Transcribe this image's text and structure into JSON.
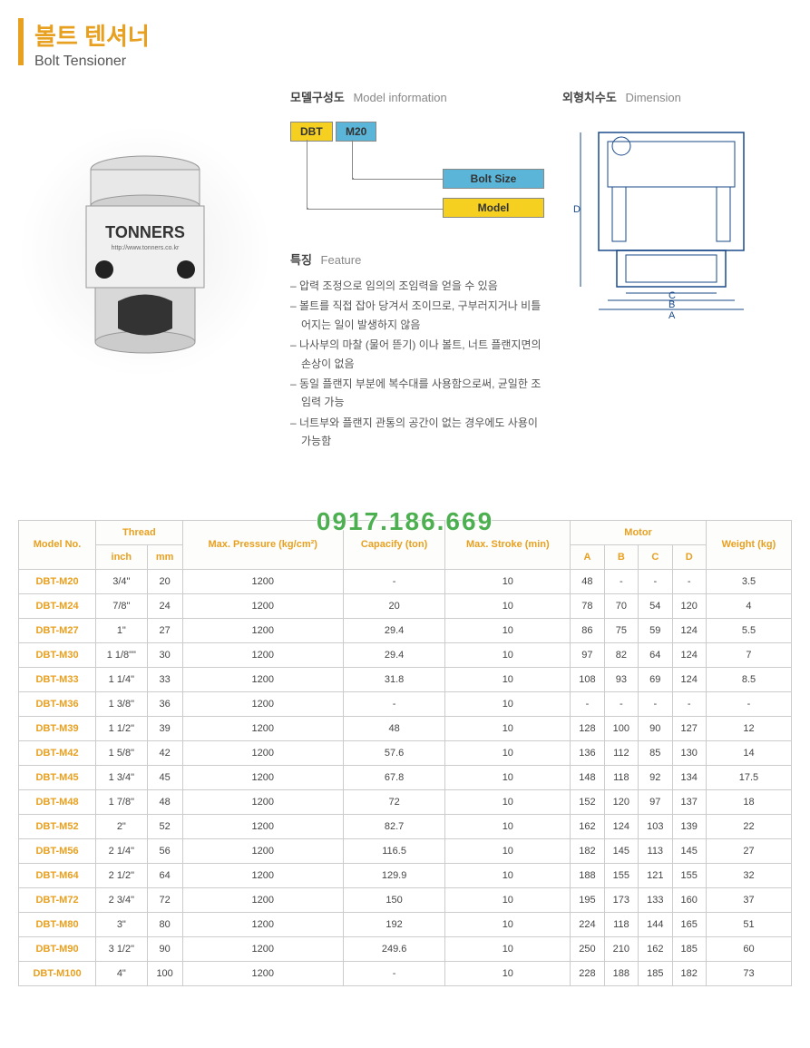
{
  "header": {
    "title_kr": "볼트 텐셔너",
    "title_en": "Bolt Tensioner",
    "accent_color": "#e8a020"
  },
  "product": {
    "brand": "TONNERS",
    "url": "http://www.tonners.co.kr"
  },
  "model_info": {
    "section_kr": "모델구성도",
    "section_en": "Model information",
    "tag_model": "DBT",
    "tag_size": "M20",
    "label_boltsize": "Bolt Size",
    "label_model": "Model",
    "color_yellow": "#f5d020",
    "color_blue": "#5bb5d8"
  },
  "feature": {
    "section_kr": "특징",
    "section_en": "Feature",
    "items": [
      "압력 조정으로 임의의 조임력을 얻을 수 있음",
      "볼트를 직접 잡아 당겨서 조이므로, 구부러지거나 비틀어지는 일이 발생하지 않음",
      "나사부의 마찰 (물어 뜯기) 이나 볼트, 너트 플랜지면의 손상이 없음",
      "동일 플랜지 부분에 복수대를 사용함으로써, 균일한 조임력 가능",
      "너트부와 플랜지 관통의 공간이 없는 경우에도 사용이 가능함"
    ]
  },
  "dimension": {
    "section_kr": "외형치수도",
    "section_en": "Dimension",
    "labels": [
      "A",
      "B",
      "C",
      "D"
    ]
  },
  "watermark": "0917.186.669",
  "table": {
    "headers": {
      "model": "Model No.",
      "thread": "Thread",
      "thread_inch": "inch",
      "thread_mm": "mm",
      "pressure": "Max. Pressure (kg/cm²)",
      "capacity": "Capacify (ton)",
      "stroke": "Max. Stroke (min)",
      "motor": "Motor",
      "motor_a": "A",
      "motor_b": "B",
      "motor_c": "C",
      "motor_d": "D",
      "weight": "Weight (kg)"
    },
    "rows": [
      {
        "model": "DBT-M20",
        "inch": "3/4\"",
        "mm": "20",
        "pressure": "1200",
        "cap": "-",
        "stroke": "10",
        "a": "48",
        "b": "-",
        "c": "-",
        "d": "-",
        "weight": "3.5"
      },
      {
        "model": "DBT-M24",
        "inch": "7/8\"",
        "mm": "24",
        "pressure": "1200",
        "cap": "20",
        "stroke": "10",
        "a": "78",
        "b": "70",
        "c": "54",
        "d": "120",
        "weight": "4"
      },
      {
        "model": "DBT-M27",
        "inch": "1\"",
        "mm": "27",
        "pressure": "1200",
        "cap": "29.4",
        "stroke": "10",
        "a": "86",
        "b": "75",
        "c": "59",
        "d": "124",
        "weight": "5.5"
      },
      {
        "model": "DBT-M30",
        "inch": "1 1/8\"\"",
        "mm": "30",
        "pressure": "1200",
        "cap": "29.4",
        "stroke": "10",
        "a": "97",
        "b": "82",
        "c": "64",
        "d": "124",
        "weight": "7"
      },
      {
        "model": "DBT-M33",
        "inch": "1 1/4\"",
        "mm": "33",
        "pressure": "1200",
        "cap": "31.8",
        "stroke": "10",
        "a": "108",
        "b": "93",
        "c": "69",
        "d": "124",
        "weight": "8.5"
      },
      {
        "model": "DBT-M36",
        "inch": "1 3/8\"",
        "mm": "36",
        "pressure": "1200",
        "cap": "-",
        "stroke": "10",
        "a": "-",
        "b": "-",
        "c": "-",
        "d": "-",
        "weight": "-"
      },
      {
        "model": "DBT-M39",
        "inch": "1 1/2\"",
        "mm": "39",
        "pressure": "1200",
        "cap": "48",
        "stroke": "10",
        "a": "128",
        "b": "100",
        "c": "90",
        "d": "127",
        "weight": "12"
      },
      {
        "model": "DBT-M42",
        "inch": "1 5/8\"",
        "mm": "42",
        "pressure": "1200",
        "cap": "57.6",
        "stroke": "10",
        "a": "136",
        "b": "112",
        "c": "85",
        "d": "130",
        "weight": "14"
      },
      {
        "model": "DBT-M45",
        "inch": "1 3/4\"",
        "mm": "45",
        "pressure": "1200",
        "cap": "67.8",
        "stroke": "10",
        "a": "148",
        "b": "118",
        "c": "92",
        "d": "134",
        "weight": "17.5"
      },
      {
        "model": "DBT-M48",
        "inch": "1 7/8\"",
        "mm": "48",
        "pressure": "1200",
        "cap": "72",
        "stroke": "10",
        "a": "152",
        "b": "120",
        "c": "97",
        "d": "137",
        "weight": "18"
      },
      {
        "model": "DBT-M52",
        "inch": "2\"",
        "mm": "52",
        "pressure": "1200",
        "cap": "82.7",
        "stroke": "10",
        "a": "162",
        "b": "124",
        "c": "103",
        "d": "139",
        "weight": "22"
      },
      {
        "model": "DBT-M56",
        "inch": "2 1/4\"",
        "mm": "56",
        "pressure": "1200",
        "cap": "116.5",
        "stroke": "10",
        "a": "182",
        "b": "145",
        "c": "113",
        "d": "145",
        "weight": "27"
      },
      {
        "model": "DBT-M64",
        "inch": "2 1/2\"",
        "mm": "64",
        "pressure": "1200",
        "cap": "129.9",
        "stroke": "10",
        "a": "188",
        "b": "155",
        "c": "121",
        "d": "155",
        "weight": "32"
      },
      {
        "model": "DBT-M72",
        "inch": "2 3/4\"",
        "mm": "72",
        "pressure": "1200",
        "cap": "150",
        "stroke": "10",
        "a": "195",
        "b": "173",
        "c": "133",
        "d": "160",
        "weight": "37"
      },
      {
        "model": "DBT-M80",
        "inch": "3\"",
        "mm": "80",
        "pressure": "1200",
        "cap": "192",
        "stroke": "10",
        "a": "224",
        "b": "118",
        "c": "144",
        "d": "165",
        "weight": "51"
      },
      {
        "model": "DBT-M90",
        "inch": "3 1/2\"",
        "mm": "90",
        "pressure": "1200",
        "cap": "249.6",
        "stroke": "10",
        "a": "250",
        "b": "210",
        "c": "162",
        "d": "185",
        "weight": "60"
      },
      {
        "model": "DBT-M100",
        "inch": "4\"",
        "mm": "100",
        "pressure": "1200",
        "cap": "-",
        "stroke": "10",
        "a": "228",
        "b": "188",
        "c": "185",
        "d": "182",
        "weight": "73"
      }
    ]
  }
}
